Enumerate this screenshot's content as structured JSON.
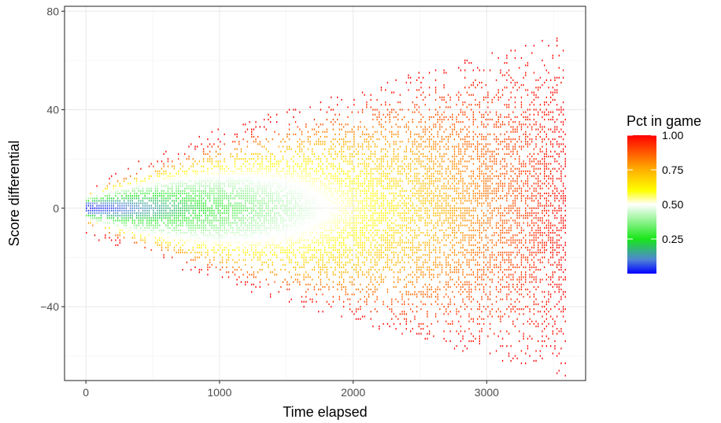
{
  "chart_data": {
    "type": "heatmap",
    "title": "",
    "xlabel": "Time elapsed",
    "ylabel": "Score differential",
    "xlim": [
      -160,
      3740
    ],
    "ylim": [
      -70,
      82
    ],
    "x_ticks": [
      0,
      1000,
      2000,
      3000
    ],
    "y_ticks": [
      -40,
      0,
      40,
      80
    ],
    "x_tick_labels": [
      "0",
      "1000",
      "2000",
      "3000"
    ],
    "y_tick_labels": [
      "−40",
      "0",
      "40",
      "80"
    ],
    "grid": true,
    "fill_variable": "Pct in game",
    "x_range": [
      0,
      3600
    ],
    "y_extent_min": [
      -6,
      -60
    ],
    "y_extent_max": [
      8,
      72
    ],
    "note_fill": "fill equals x / 3600 and saturates toward red away from 0",
    "legend": {
      "title": "Pct in game",
      "placement": "right",
      "range": [
        0,
        1
      ],
      "breaks": [
        {
          "value": 1.0,
          "label": "1.00"
        },
        {
          "value": 0.75,
          "label": "0.75"
        },
        {
          "value": 0.5,
          "label": "0.50"
        },
        {
          "value": 0.25,
          "label": "0.25"
        }
      ],
      "colors": [
        {
          "offset": 0.0,
          "color": "#0000ff"
        },
        {
          "offset": 0.1,
          "color": "#4f84d6"
        },
        {
          "offset": 0.25,
          "color": "#19e619"
        },
        {
          "offset": 0.5,
          "color": "#ffffff"
        },
        {
          "offset": 0.6,
          "color": "#ffff00"
        },
        {
          "offset": 0.75,
          "color": "#ffb000"
        },
        {
          "offset": 1.0,
          "color": "#ff0000"
        }
      ]
    }
  }
}
